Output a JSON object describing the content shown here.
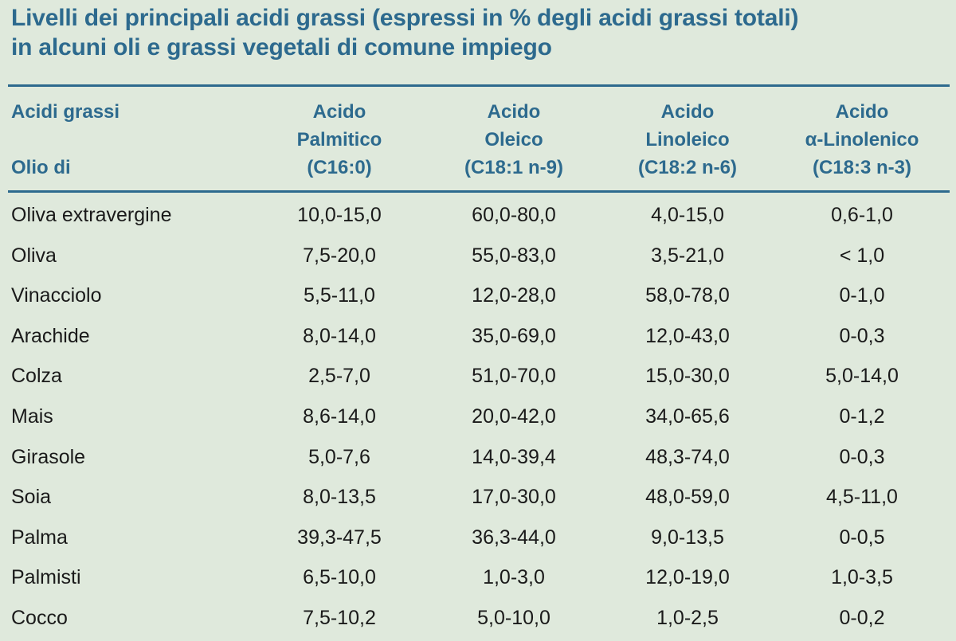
{
  "title": {
    "line1": "Livelli dei principali acidi grassi (espressi in % degli acidi grassi totali)",
    "line2": "in alcuni oli e grassi vegetali di comune impiego"
  },
  "header": {
    "left_top": "Acidi grassi",
    "left_bottom": "Olio di",
    "columns": [
      {
        "l1": "Acido",
        "l2": "Palmitico",
        "l3": "(C16:0)"
      },
      {
        "l1": "Acido",
        "l2": "Oleico",
        "l3": "(C18:1 n-9)"
      },
      {
        "l1": "Acido",
        "l2": "Linoleico",
        "l3": "(C18:2 n-6)"
      },
      {
        "l1": "Acido",
        "l2": "α-Linolenico",
        "l3": "(C18:3 n-3)"
      }
    ]
  },
  "rows": [
    {
      "name": "Oliva extravergine",
      "palmitico": "10,0-15,0",
      "oleico": "60,0-80,0",
      "linoleico": "4,0-15,0",
      "linolenico": "0,6-1,0"
    },
    {
      "name": "Oliva",
      "palmitico": "7,5-20,0",
      "oleico": "55,0-83,0",
      "linoleico": "3,5-21,0",
      "linolenico": "< 1,0"
    },
    {
      "name": "Vinacciolo",
      "palmitico": "5,5-11,0",
      "oleico": "12,0-28,0",
      "linoleico": "58,0-78,0",
      "linolenico": "0-1,0"
    },
    {
      "name": "Arachide",
      "palmitico": "8,0-14,0",
      "oleico": "35,0-69,0",
      "linoleico": "12,0-43,0",
      "linolenico": "0-0,3"
    },
    {
      "name": "Colza",
      "palmitico": "2,5-7,0",
      "oleico": "51,0-70,0",
      "linoleico": "15,0-30,0",
      "linolenico": "5,0-14,0"
    },
    {
      "name": "Mais",
      "palmitico": "8,6-14,0",
      "oleico": "20,0-42,0",
      "linoleico": "34,0-65,6",
      "linolenico": "0-1,2"
    },
    {
      "name": "Girasole",
      "palmitico": "5,0-7,6",
      "oleico": "14,0-39,4",
      "linoleico": "48,3-74,0",
      "linolenico": "0-0,3"
    },
    {
      "name": "Soia",
      "palmitico": "8,0-13,5",
      "oleico": "17,0-30,0",
      "linoleico": "48,0-59,0",
      "linolenico": "4,5-11,0"
    },
    {
      "name": "Palma",
      "palmitico": "39,3-47,5",
      "oleico": "36,3-44,0",
      "linoleico": "9,0-13,5",
      "linolenico": "0-0,5"
    },
    {
      "name": "Palmisti",
      "palmitico": "6,5-10,0",
      "oleico": "1,0-3,0",
      "linoleico": "12,0-19,0",
      "linolenico": "1,0-3,5"
    },
    {
      "name": "Cocco",
      "palmitico": "7,5-10,2",
      "oleico": "5,0-10,0",
      "linoleico": "1,0-2,5",
      "linolenico": "0-0,2"
    }
  ],
  "colors": {
    "background": "#dfe9dc",
    "accent": "#2d6a8e",
    "text": "#1a1a1a"
  }
}
